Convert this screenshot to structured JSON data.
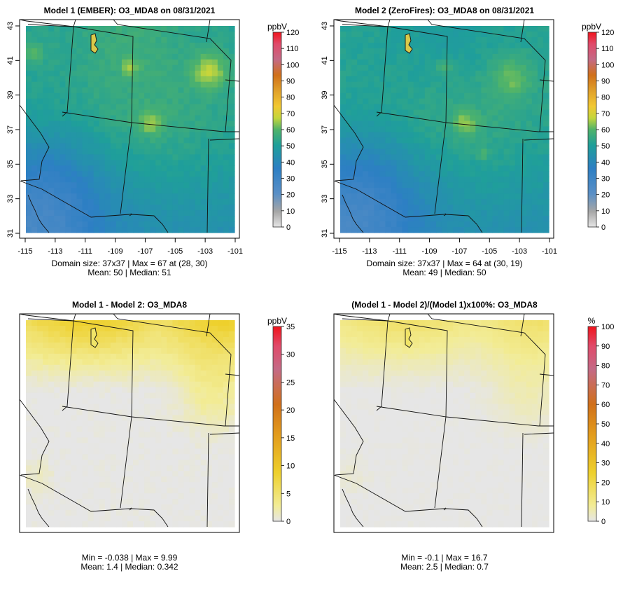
{
  "chart_data": [
    {
      "type": "heatmap",
      "title": "Model 1 (EMBER): O3_MDA8 on 08/31/2021",
      "colorbar_unit": "ppbV",
      "colorbar_ticks": [
        "0",
        "10",
        "20",
        "30",
        "40",
        "50",
        "60",
        "70",
        "80",
        "90",
        "100",
        "110",
        "120"
      ],
      "colorbar_range": [
        0,
        120
      ],
      "palette": "green-blue-yellow-red",
      "xticks": [
        "-115",
        "-113",
        "-111",
        "-109",
        "-107",
        "-105",
        "-103",
        "-101"
      ],
      "yticks": [
        "31",
        "33",
        "35",
        "37",
        "39",
        "41",
        "43"
      ],
      "xlim": [
        -115,
        -101
      ],
      "ylim": [
        31,
        43
      ],
      "stats_line1": "Domain size: 37x37 | Max = 67 at (28, 30)",
      "stats_line2": "Mean: 50 |  Median: 51",
      "show_axes": true
    },
    {
      "type": "heatmap",
      "title": "Model 2 (ZeroFires): O3_MDA8 on 08/31/2021",
      "colorbar_unit": "ppbV",
      "colorbar_ticks": [
        "0",
        "10",
        "20",
        "30",
        "40",
        "50",
        "60",
        "70",
        "80",
        "90",
        "100",
        "110",
        "120"
      ],
      "colorbar_range": [
        0,
        120
      ],
      "palette": "green-blue-yellow-red",
      "xticks": [
        "-115",
        "-113",
        "-111",
        "-109",
        "-107",
        "-105",
        "-103",
        "-101"
      ],
      "yticks": [
        "31",
        "33",
        "35",
        "37",
        "39",
        "41",
        "43"
      ],
      "xlim": [
        -115,
        -101
      ],
      "ylim": [
        31,
        43
      ],
      "stats_line1": "Domain size: 37x37 | Max = 64 at (30, 19)",
      "stats_line2": "Mean: 49 |  Median: 50",
      "show_axes": true
    },
    {
      "type": "heatmap",
      "title": "Model 1 - Model 2: O3_MDA8",
      "colorbar_unit": "ppbV",
      "colorbar_ticks": [
        "0",
        "5",
        "10",
        "15",
        "20",
        "25",
        "30",
        "35"
      ],
      "colorbar_range": [
        0,
        35
      ],
      "palette": "grey-yellow-red",
      "stats_line1": "Min = -0.038 | Max = 9.99",
      "stats_line2": "Mean: 1.4 |  Median: 0.342",
      "show_axes": false
    },
    {
      "type": "heatmap",
      "title": "(Model 1 - Model 2)/(Model 1)x100%: O3_MDA8",
      "colorbar_unit": "%",
      "colorbar_ticks": [
        "0",
        "10",
        "20",
        "30",
        "40",
        "50",
        "60",
        "70",
        "80",
        "90",
        "100"
      ],
      "colorbar_range": [
        0,
        100
      ],
      "palette": "grey-yellow-red",
      "stats_line1": "Min = -0.1 | Max = 16.7",
      "stats_line2": "Mean: 2.5 |  Median: 0.7",
      "show_axes": false
    }
  ]
}
